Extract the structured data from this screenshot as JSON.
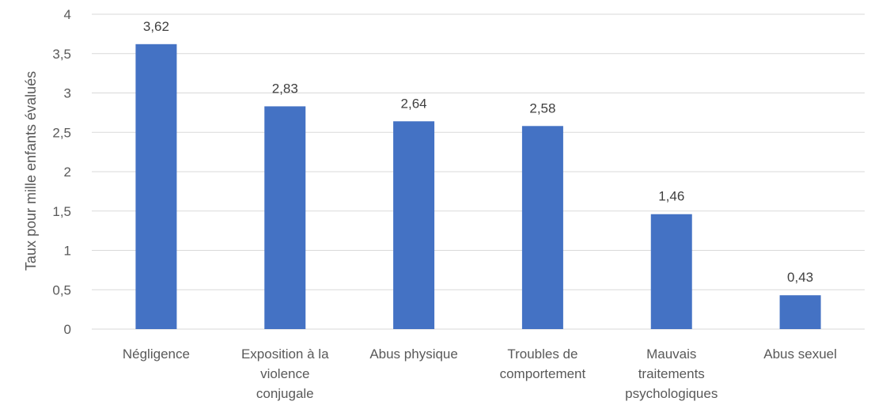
{
  "chart_data": {
    "type": "bar",
    "categories": [
      "Négligence",
      "Exposition à la violence conjugale",
      "Abus physique",
      "Troubles de comportement",
      "Mauvais traitements psychologiques",
      "Abus sexuel"
    ],
    "category_lines": [
      [
        "Négligence"
      ],
      [
        "Exposition à la",
        "violence",
        "conjugale"
      ],
      [
        "Abus physique"
      ],
      [
        "Troubles de",
        "comportement"
      ],
      [
        "Mauvais",
        "traitements",
        "psychologiques"
      ],
      [
        "Abus sexuel"
      ]
    ],
    "values": [
      3.62,
      2.83,
      2.64,
      2.58,
      1.46,
      0.43
    ],
    "data_labels": [
      "3,62",
      "2,83",
      "2,64",
      "2,58",
      "1,46",
      "0,43"
    ],
    "ylabel": "Taux pour mille enfants évalués",
    "xlabel": "",
    "title": "",
    "ylim": [
      0,
      4
    ],
    "yticks": [
      0,
      0.5,
      1,
      1.5,
      2,
      2.5,
      3,
      3.5,
      4
    ],
    "ytick_labels": [
      "0",
      "0,5",
      "1",
      "1,5",
      "2",
      "2,5",
      "3",
      "3,5",
      "4"
    ],
    "grid": true,
    "legend": "none",
    "colors": {
      "bar": "#4472C4",
      "grid": "#D9D9D9",
      "axis": "#D9D9D9"
    }
  }
}
